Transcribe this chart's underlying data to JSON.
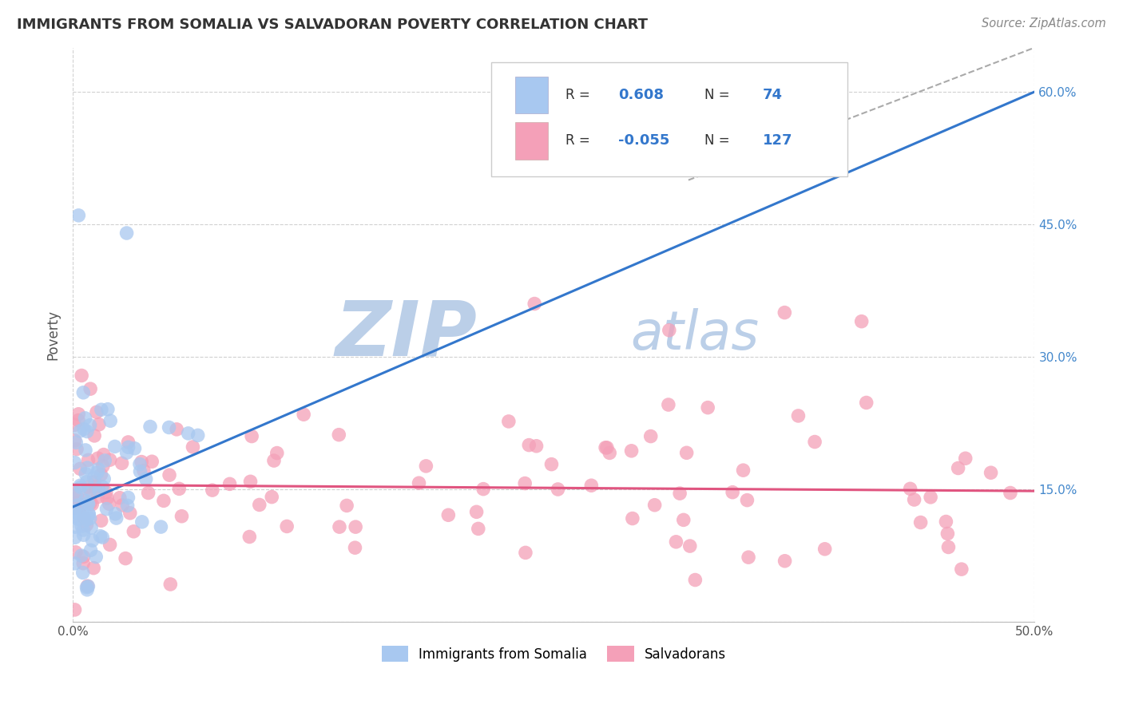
{
  "title": "IMMIGRANTS FROM SOMALIA VS SALVADORAN POVERTY CORRELATION CHART",
  "source": "Source: ZipAtlas.com",
  "ylabel": "Poverty",
  "yticks": [
    0.0,
    0.15,
    0.3,
    0.45,
    0.6
  ],
  "xlim": [
    0.0,
    0.5
  ],
  "ylim": [
    0.0,
    0.65
  ],
  "r_somalia": 0.608,
  "n_somalia": 74,
  "r_salvadoran": -0.055,
  "n_salvadoran": 127,
  "somalia_color": "#a8c8f0",
  "salvadoran_color": "#f4a0b8",
  "somalia_line_color": "#3377cc",
  "salvadoran_line_color": "#e05580",
  "watermark_zip": "ZIP",
  "watermark_atlas": "atlas",
  "watermark_color": "#ccddf0",
  "background_color": "#ffffff",
  "somalia_line_y0": 0.13,
  "somalia_line_y1": 0.6,
  "salvadoran_line_y0": 0.155,
  "salvadoran_line_y1": 0.148,
  "dash_line_x": [
    0.32,
    0.5
  ],
  "dash_line_y": [
    0.5,
    0.65
  ]
}
